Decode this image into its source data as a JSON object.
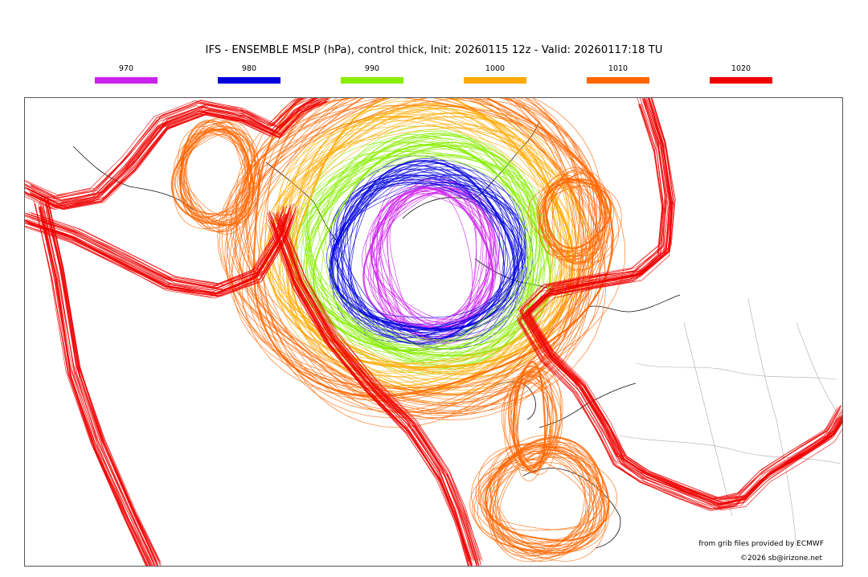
{
  "title": "IFS - ENSEMBLE MSLP (hPa), control thick, Init: 20260115 12z - Valid: 20260117:18 TU",
  "legend": [
    {
      "label": "970",
      "color": "#cc22ee"
    },
    {
      "label": "980",
      "color": "#0000dd"
    },
    {
      "label": "990",
      "color": "#88ee00"
    },
    {
      "label": "1000",
      "color": "#ffaa00"
    },
    {
      "label": "1010",
      "color": "#ff6600"
    },
    {
      "label": "1020",
      "color": "#ee0000"
    }
  ],
  "credits": {
    "source": "from grib files provided by ECMWF",
    "copyright": "©2026 sb@irizone.net"
  }
}
